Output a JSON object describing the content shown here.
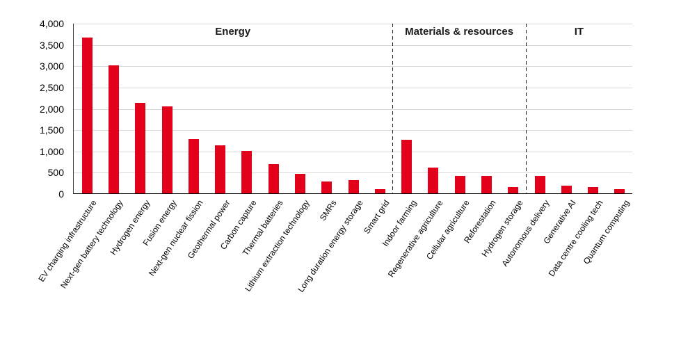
{
  "chart_data": {
    "type": "bar",
    "title": "",
    "xlabel": "",
    "ylabel": "",
    "ylim": [
      0,
      4000
    ],
    "ytick_step": 500,
    "ytick_labels": [
      "0",
      "500",
      "1,000",
      "1,500",
      "2,000",
      "2,500",
      "3,000",
      "3,500",
      "4,000"
    ],
    "grid": true,
    "legend": "none",
    "bar_color": "#e2001a",
    "gridline_color": "#d9d9d9",
    "categories": [
      "EV charging infrastructure",
      "Next-gen battery technology",
      "Hydrogen energy",
      "Fusion energy",
      "Next-gen nuclear fission",
      "Geothermal power",
      "Carbon capture",
      "Thermal batteries",
      "Lithium extraction technology",
      "SMRs",
      "Long duration energy storage",
      "Smart grid",
      "Indoor farming",
      "Regenerative agriculture",
      "Cellular agriculture",
      "Reforestation",
      "Hydrogen storage",
      "Autonomous delivery",
      "Generative AI",
      "Data centre cooling tech",
      "Quantum computing"
    ],
    "values": [
      3650,
      3010,
      2120,
      2040,
      1270,
      1120,
      990,
      690,
      450,
      285,
      305,
      100,
      1250,
      610,
      410,
      415,
      155,
      415,
      175,
      140,
      105
    ],
    "sections": [
      {
        "label": "Energy",
        "from": 0,
        "to": 11
      },
      {
        "label": "Materials & resources",
        "from": 12,
        "to": 16
      },
      {
        "label": "IT",
        "from": 17,
        "to": 20
      }
    ]
  }
}
